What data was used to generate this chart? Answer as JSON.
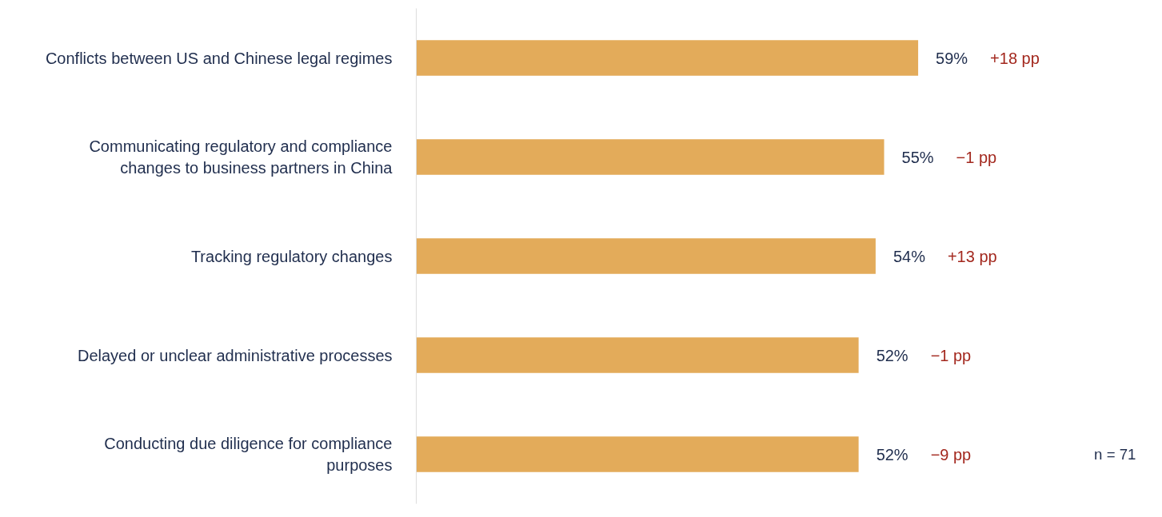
{
  "chart_data": {
    "type": "bar",
    "orientation": "horizontal",
    "categories": [
      "Conflicts between US and Chinese legal regimes",
      "Communicating regulatory and compliance changes to business partners in China",
      "Tracking regulatory changes",
      "Delayed or unclear administrative processes",
      "Conducting due diligence for compliance purposes"
    ],
    "values": [
      59,
      55,
      54,
      52,
      52
    ],
    "value_labels": [
      "59%",
      "55%",
      "54%",
      "52%",
      "52%"
    ],
    "color": "#e3ab5a",
    "tick_labels": "y",
    "grid": false,
    "annotations": [
      "+18 pp",
      "−1 pp",
      "+13 pp",
      "−1 pp",
      "−9 pp",
      "n = 71"
    ]
  }
}
